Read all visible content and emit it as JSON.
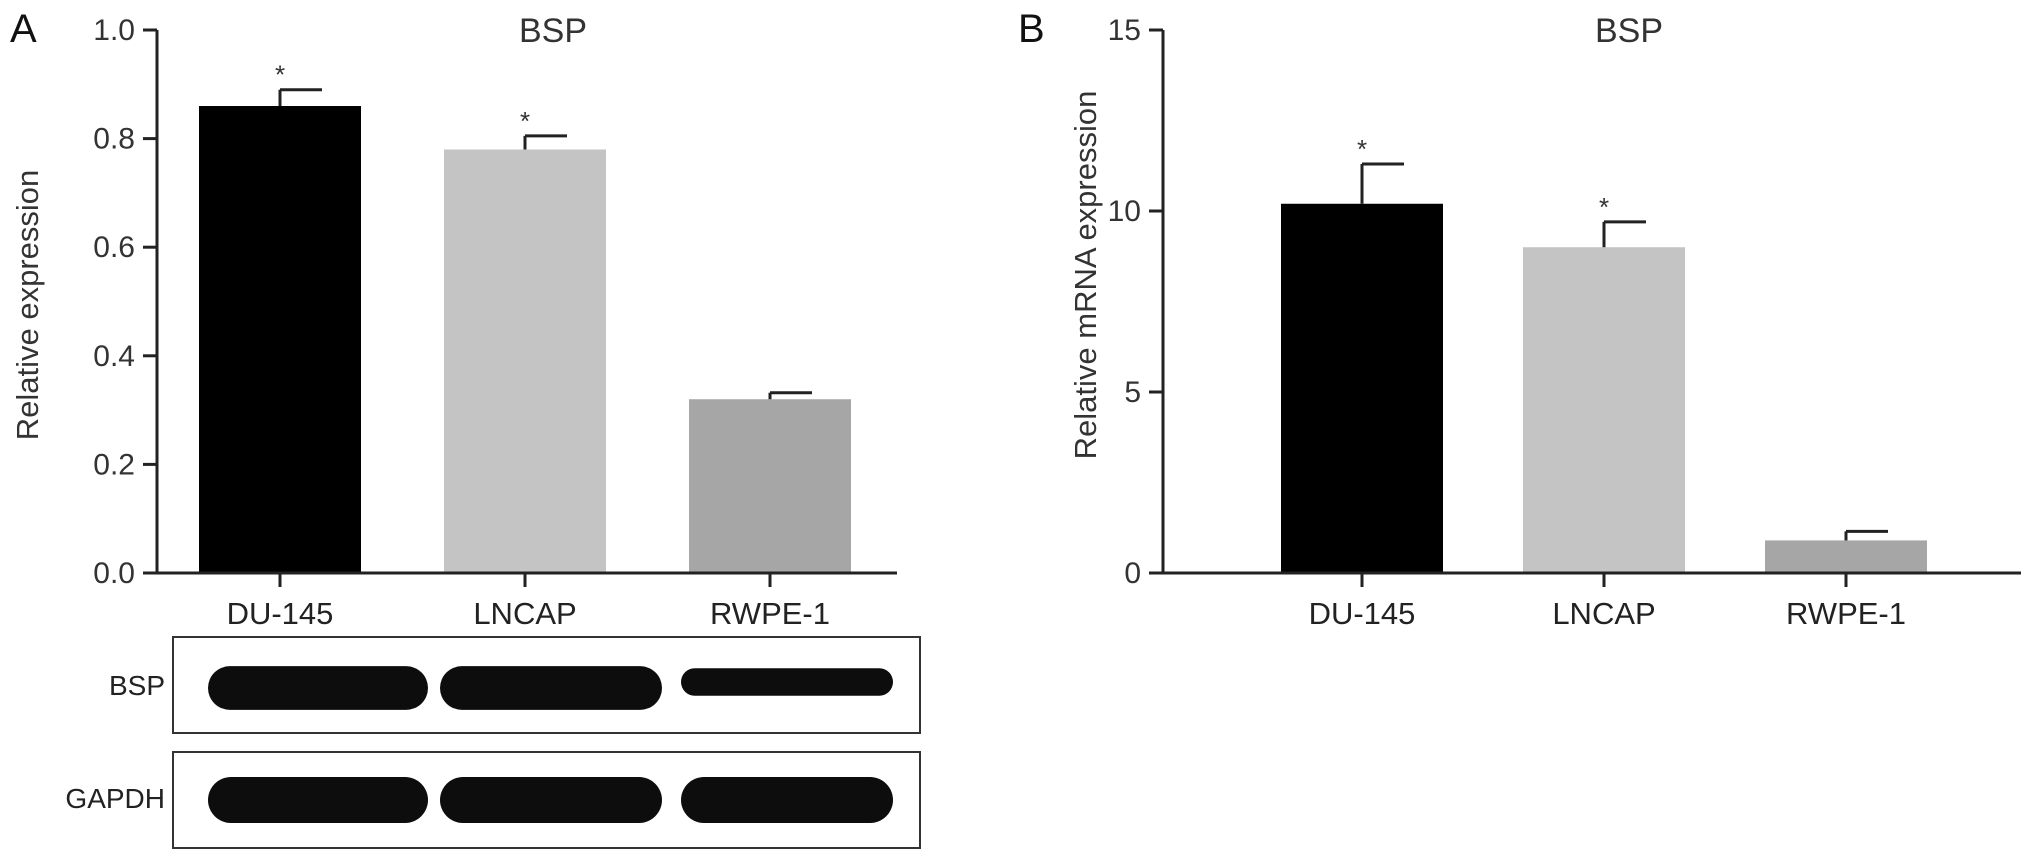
{
  "panels": [
    {
      "letter": "A",
      "chart_data": {
        "type": "bar",
        "title": "BSP",
        "ylabel": "Relative expression",
        "xlabel": "",
        "categories": [
          "DU-145",
          "LNCAP",
          "RWPE-1"
        ],
        "values": [
          0.86,
          0.78,
          0.32
        ],
        "errors": [
          0.03,
          0.025,
          0.012
        ],
        "significance": [
          "*",
          "*",
          ""
        ],
        "colors": [
          "#000000",
          "#c4c4c4",
          "#a6a6a6"
        ],
        "ylim": [
          0,
          1.0
        ],
        "yticks": [
          0.0,
          0.2,
          0.4,
          0.6,
          0.8,
          1.0
        ],
        "ytick_labels": [
          "0.0",
          "0.2",
          "0.4",
          "0.6",
          "0.8",
          "1.0"
        ],
        "grid": false,
        "legend": "none"
      }
    },
    {
      "letter": "B",
      "chart_data": {
        "type": "bar",
        "title": "BSP",
        "ylabel": "Relative mRNA expression",
        "xlabel": "",
        "categories": [
          "DU-145",
          "LNCAP",
          "RWPE-1"
        ],
        "values": [
          10.2,
          9.0,
          0.9
        ],
        "errors": [
          1.1,
          0.7,
          0.25
        ],
        "significance": [
          "*",
          "*",
          ""
        ],
        "colors": [
          "#000000",
          "#c4c4c4",
          "#a6a6a6"
        ],
        "ylim": [
          0,
          15
        ],
        "yticks": [
          0,
          5,
          10,
          15
        ],
        "ytick_labels": [
          "0",
          "5",
          "10",
          "15"
        ],
        "grid": false,
        "legend": "none"
      }
    }
  ],
  "blot": {
    "rows": [
      {
        "label": "BSP",
        "band_strength": [
          0.95,
          0.95,
          0.6
        ]
      },
      {
        "label": "GAPDH",
        "band_strength": [
          1.0,
          1.0,
          1.0
        ]
      }
    ]
  }
}
